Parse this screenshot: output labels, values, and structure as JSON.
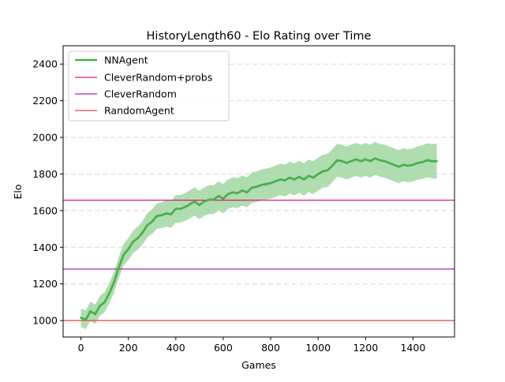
{
  "chart_data": {
    "type": "line",
    "title": "HistoryLength60 - Elo Rating over Time",
    "xlabel": "Games",
    "ylabel": "Elo",
    "xlim": [
      -75,
      1575
    ],
    "ylim": [
      910,
      2500
    ],
    "x_ticks": [
      0,
      200,
      400,
      600,
      800,
      1000,
      1200,
      1400
    ],
    "y_ticks": [
      1000,
      1200,
      1400,
      1600,
      1800,
      2000,
      2200,
      2400
    ],
    "grid": "y-dashed",
    "legend_position": "top-left",
    "series": [
      {
        "name": "NNAgent",
        "color": "#4caf50",
        "band_color": "#a6d9a6",
        "points": [
          [
            0,
            1015
          ],
          [
            20,
            1005
          ],
          [
            40,
            1050
          ],
          [
            60,
            1035
          ],
          [
            80,
            1080
          ],
          [
            100,
            1100
          ],
          [
            120,
            1150
          ],
          [
            140,
            1210
          ],
          [
            160,
            1290
          ],
          [
            180,
            1360
          ],
          [
            200,
            1390
          ],
          [
            220,
            1430
          ],
          [
            240,
            1450
          ],
          [
            260,
            1480
          ],
          [
            280,
            1520
          ],
          [
            300,
            1540
          ],
          [
            320,
            1570
          ],
          [
            340,
            1575
          ],
          [
            360,
            1585
          ],
          [
            380,
            1580
          ],
          [
            400,
            1610
          ],
          [
            420,
            1610
          ],
          [
            440,
            1620
          ],
          [
            460,
            1635
          ],
          [
            480,
            1650
          ],
          [
            500,
            1630
          ],
          [
            520,
            1650
          ],
          [
            540,
            1660
          ],
          [
            560,
            1660
          ],
          [
            580,
            1680
          ],
          [
            600,
            1665
          ],
          [
            620,
            1690
          ],
          [
            640,
            1700
          ],
          [
            660,
            1695
          ],
          [
            680,
            1710
          ],
          [
            700,
            1700
          ],
          [
            720,
            1725
          ],
          [
            740,
            1730
          ],
          [
            760,
            1740
          ],
          [
            780,
            1745
          ],
          [
            800,
            1750
          ],
          [
            820,
            1760
          ],
          [
            840,
            1770
          ],
          [
            860,
            1765
          ],
          [
            880,
            1780
          ],
          [
            900,
            1770
          ],
          [
            920,
            1785
          ],
          [
            940,
            1770
          ],
          [
            960,
            1790
          ],
          [
            980,
            1780
          ],
          [
            1000,
            1800
          ],
          [
            1020,
            1815
          ],
          [
            1040,
            1820
          ],
          [
            1060,
            1845
          ],
          [
            1080,
            1875
          ],
          [
            1100,
            1870
          ],
          [
            1120,
            1860
          ],
          [
            1140,
            1870
          ],
          [
            1160,
            1880
          ],
          [
            1180,
            1870
          ],
          [
            1200,
            1880
          ],
          [
            1220,
            1870
          ],
          [
            1240,
            1885
          ],
          [
            1260,
            1875
          ],
          [
            1280,
            1870
          ],
          [
            1300,
            1860
          ],
          [
            1320,
            1850
          ],
          [
            1340,
            1840
          ],
          [
            1360,
            1850
          ],
          [
            1380,
            1845
          ],
          [
            1400,
            1850
          ],
          [
            1420,
            1860
          ],
          [
            1440,
            1865
          ],
          [
            1460,
            1875
          ],
          [
            1480,
            1870
          ],
          [
            1500,
            1870
          ]
        ],
        "band_halfwidth": [
          [
            0,
            50
          ],
          [
            100,
            55
          ],
          [
            200,
            60
          ],
          [
            400,
            75
          ],
          [
            600,
            80
          ],
          [
            800,
            85
          ],
          [
            1000,
            90
          ],
          [
            1200,
            90
          ],
          [
            1400,
            90
          ],
          [
            1500,
            95
          ]
        ]
      },
      {
        "name": "CleverRandom+probs",
        "color": "#e0197e",
        "constant": 1657
      },
      {
        "name": "CleverRandom",
        "color": "#b421b4",
        "constant": 1281
      },
      {
        "name": "RandomAgent",
        "color": "#e8483a",
        "constant": 1000
      }
    ]
  }
}
